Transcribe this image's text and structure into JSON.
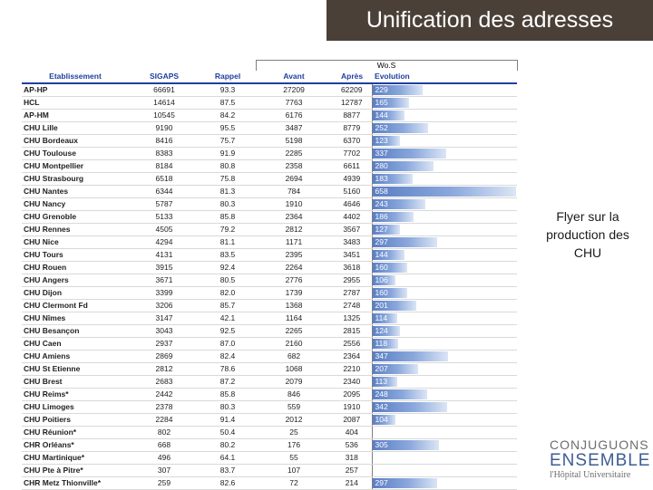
{
  "header": {
    "title": "Unification des adresses"
  },
  "table": {
    "group_label": "Wo.S",
    "columns": [
      "Etablissement",
      "SIGAPS",
      "Rappel",
      "Avant",
      "Après",
      "Evolution"
    ],
    "max_evolution": 658,
    "rows": [
      {
        "etab": "AP-HP",
        "sigaps": "66691",
        "rappel": "93.3",
        "avant": "27209",
        "apres": "62209",
        "evo": "229"
      },
      {
        "etab": "HCL",
        "sigaps": "14614",
        "rappel": "87.5",
        "avant": "7763",
        "apres": "12787",
        "evo": "165"
      },
      {
        "etab": "AP-HM",
        "sigaps": "10545",
        "rappel": "84.2",
        "avant": "6176",
        "apres": "8877",
        "evo": "144"
      },
      {
        "etab": "CHU Lille",
        "sigaps": "9190",
        "rappel": "95.5",
        "avant": "3487",
        "apres": "8779",
        "evo": "252"
      },
      {
        "etab": "CHU Bordeaux",
        "sigaps": "8416",
        "rappel": "75.7",
        "avant": "5198",
        "apres": "6370",
        "evo": "123"
      },
      {
        "etab": "CHU Toulouse",
        "sigaps": "8383",
        "rappel": "91.9",
        "avant": "2285",
        "apres": "7702",
        "evo": "337"
      },
      {
        "etab": "CHU Montpellier",
        "sigaps": "8184",
        "rappel": "80.8",
        "avant": "2358",
        "apres": "6611",
        "evo": "280"
      },
      {
        "etab": "CHU Strasbourg",
        "sigaps": "6518",
        "rappel": "75.8",
        "avant": "2694",
        "apres": "4939",
        "evo": "183"
      },
      {
        "etab": "CHU Nantes",
        "sigaps": "6344",
        "rappel": "81.3",
        "avant": "784",
        "apres": "5160",
        "evo": "658"
      },
      {
        "etab": "CHU Nancy",
        "sigaps": "5787",
        "rappel": "80.3",
        "avant": "1910",
        "apres": "4646",
        "evo": "243"
      },
      {
        "etab": "CHU Grenoble",
        "sigaps": "5133",
        "rappel": "85.8",
        "avant": "2364",
        "apres": "4402",
        "evo": "186"
      },
      {
        "etab": "CHU Rennes",
        "sigaps": "4505",
        "rappel": "79.2",
        "avant": "2812",
        "apres": "3567",
        "evo": "127"
      },
      {
        "etab": "CHU Nice",
        "sigaps": "4294",
        "rappel": "81.1",
        "avant": "1171",
        "apres": "3483",
        "evo": "297"
      },
      {
        "etab": "CHU Tours",
        "sigaps": "4131",
        "rappel": "83.5",
        "avant": "2395",
        "apres": "3451",
        "evo": "144"
      },
      {
        "etab": "CHU Rouen",
        "sigaps": "3915",
        "rappel": "92.4",
        "avant": "2264",
        "apres": "3618",
        "evo": "160"
      },
      {
        "etab": "CHU Angers",
        "sigaps": "3671",
        "rappel": "80.5",
        "avant": "2776",
        "apres": "2955",
        "evo": "106"
      },
      {
        "etab": "CHU Dijon",
        "sigaps": "3399",
        "rappel": "82.0",
        "avant": "1739",
        "apres": "2787",
        "evo": "160"
      },
      {
        "etab": "CHU Clermont Fd",
        "sigaps": "3206",
        "rappel": "85.7",
        "avant": "1368",
        "apres": "2748",
        "evo": "201"
      },
      {
        "etab": "CHU Nîmes",
        "sigaps": "3147",
        "rappel": "42.1",
        "avant": "1164",
        "apres": "1325",
        "evo": "114"
      },
      {
        "etab": "CHU Besançon",
        "sigaps": "3043",
        "rappel": "92.5",
        "avant": "2265",
        "apres": "2815",
        "evo": "124"
      },
      {
        "etab": "CHU Caen",
        "sigaps": "2937",
        "rappel": "87.0",
        "avant": "2160",
        "apres": "2556",
        "evo": "118"
      },
      {
        "etab": "CHU Amiens",
        "sigaps": "2869",
        "rappel": "82.4",
        "avant": "682",
        "apres": "2364",
        "evo": "347"
      },
      {
        "etab": "CHU St Etienne",
        "sigaps": "2812",
        "rappel": "78.6",
        "avant": "1068",
        "apres": "2210",
        "evo": "207"
      },
      {
        "etab": "CHU Brest",
        "sigaps": "2683",
        "rappel": "87.2",
        "avant": "2079",
        "apres": "2340",
        "evo": "113"
      },
      {
        "etab": "CHU Reims*",
        "sigaps": "2442",
        "rappel": "85.8",
        "avant": "846",
        "apres": "2095",
        "evo": "248"
      },
      {
        "etab": "CHU Limoges",
        "sigaps": "2378",
        "rappel": "80.3",
        "avant": "559",
        "apres": "1910",
        "evo": "342"
      },
      {
        "etab": "CHU Poitiers",
        "sigaps": "2284",
        "rappel": "91.4",
        "avant": "2012",
        "apres": "2087",
        "evo": "104"
      },
      {
        "etab": "CHU Réunion*",
        "sigaps": "802",
        "rappel": "50.4",
        "avant": "25",
        "apres": "404",
        "evo": ""
      },
      {
        "etab": "CHR Orléans*",
        "sigaps": "668",
        "rappel": "80.2",
        "avant": "176",
        "apres": "536",
        "evo": "305"
      },
      {
        "etab": "CHU Martinique*",
        "sigaps": "496",
        "rappel": "64.1",
        "avant": "55",
        "apres": "318",
        "evo": ""
      },
      {
        "etab": "CHU Pte à Pitre*",
        "sigaps": "307",
        "rappel": "83.7",
        "avant": "107",
        "apres": "257",
        "evo": ""
      },
      {
        "etab": "CHR Metz Thionville*",
        "sigaps": "259",
        "rappel": "82.6",
        "avant": "72",
        "apres": "214",
        "evo": "297"
      }
    ]
  },
  "side_note": {
    "line1": "Flyer sur la",
    "line2": "production des",
    "line3": "CHU"
  },
  "logo": {
    "line1": "CONJUGUONS",
    "line2": "ENSEMBLE",
    "line3": "l'Hôpital Universitaire"
  },
  "colors": {
    "title_bg": "#4a4038",
    "header_text": "#1f3f9f",
    "bar": "#5a7ec4"
  }
}
